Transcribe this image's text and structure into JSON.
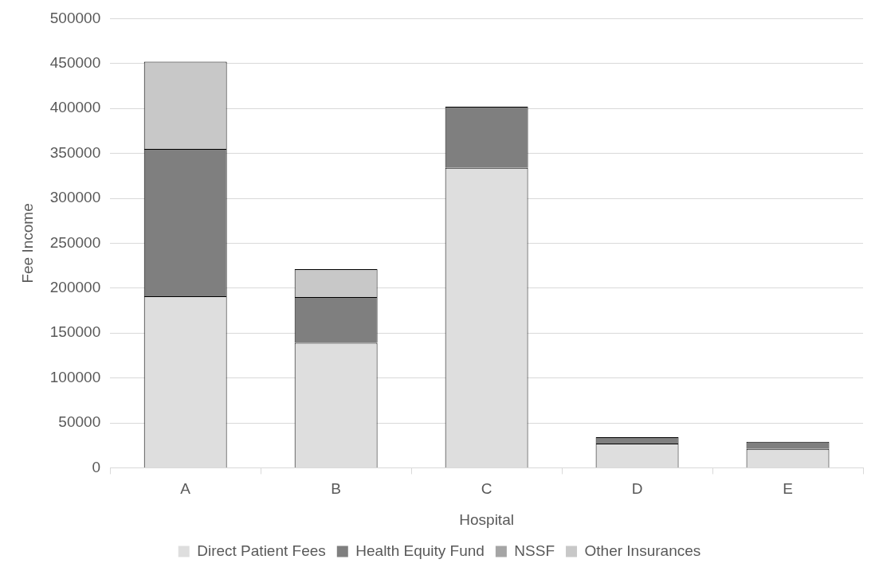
{
  "chart_data": {
    "type": "bar",
    "stacked": true,
    "xlabel": "Hospital",
    "ylabel": "Fee Income",
    "categories": [
      "A",
      "B",
      "C",
      "D",
      "E"
    ],
    "series": [
      {
        "name": "Direct Patient Fees",
        "color": "#dedede",
        "values": [
          191000,
          139000,
          334000,
          27000,
          21000
        ]
      },
      {
        "name": "Health Equity Fund",
        "color": "#7f7f7f",
        "values": [
          164000,
          51000,
          68000,
          7000,
          8000
        ]
      },
      {
        "name": "NSSF",
        "color": "#a5a5a5",
        "values": [
          0,
          0,
          0,
          0,
          0
        ]
      },
      {
        "name": "Other Insurances",
        "color": "#c8c8c8",
        "values": [
          97000,
          31000,
          0,
          0,
          0
        ]
      }
    ],
    "ylim": [
      0,
      500000
    ],
    "yticks": [
      0,
      50000,
      100000,
      150000,
      200000,
      250000,
      300000,
      350000,
      400000,
      450000,
      500000
    ],
    "grid": "y",
    "legend": "bottom"
  }
}
